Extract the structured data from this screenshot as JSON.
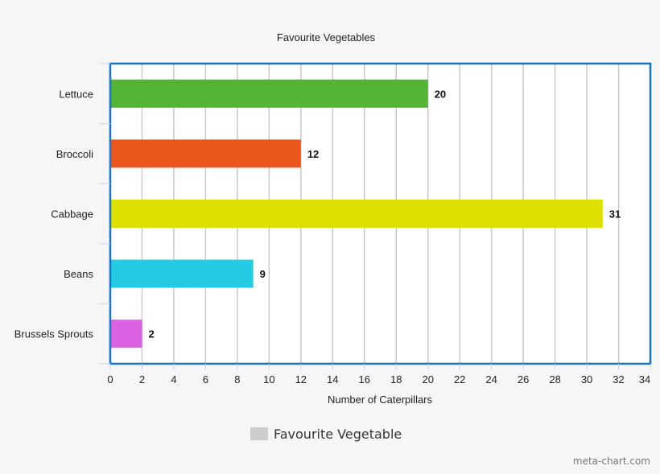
{
  "chart_data": {
    "type": "bar",
    "orientation": "horizontal",
    "title": "Favourite Vegetables",
    "xlabel": "Number of Caterpillars",
    "ylabel": "",
    "categories": [
      "Lettuce",
      "Broccoli",
      "Cabbage",
      "Beans",
      "Brussels Sprouts"
    ],
    "values": [
      20,
      12,
      31,
      9,
      2
    ],
    "colors": [
      "#52b334",
      "#ea561c",
      "#dde000",
      "#25cae4",
      "#dc62e4"
    ],
    "xlim": [
      0,
      34
    ],
    "xticks": [
      0,
      2,
      4,
      6,
      8,
      10,
      12,
      14,
      16,
      18,
      20,
      22,
      24,
      26,
      28,
      30,
      32,
      34
    ],
    "grid": "vertical",
    "data_labels": true,
    "legend": {
      "position": "bottom-center",
      "entries": [
        {
          "name": "Favourite Vegetable",
          "color": "#cccccc"
        }
      ]
    },
    "frame_color": "#1a73c1"
  },
  "credit": "meta-chart.com"
}
